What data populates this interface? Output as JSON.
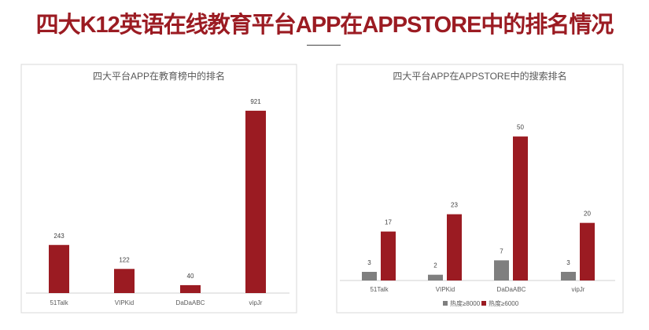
{
  "page_title": "四大K12英语在线教育平台APP在APPSTORE中的排名情况",
  "colors": {
    "title": "#9b1b22",
    "bar_red": "#9b1b22",
    "bar_gray": "#7f7f7f"
  },
  "chart_data": [
    {
      "type": "bar",
      "title": "四大平台APP在教育榜中的排名",
      "categories": [
        "51Talk",
        "VIPKid",
        "DaDaABC",
        "vipJr"
      ],
      "values": [
        243,
        122,
        40,
        921
      ],
      "ylim": [
        0,
        1000
      ],
      "grid": false,
      "legend": "none"
    },
    {
      "type": "bar",
      "title": "四大平台APP在APPSTORE中的搜索排名",
      "categories": [
        "51Talk",
        "VIPKid",
        "DaDaABC",
        "vipJr"
      ],
      "series": [
        {
          "name": "热度≥8000",
          "values": [
            3,
            2,
            7,
            3
          ],
          "color": "#7f7f7f"
        },
        {
          "name": "热度≥6000",
          "values": [
            17,
            23,
            50,
            20
          ],
          "color": "#9b1b22"
        }
      ],
      "ylim": [
        0,
        60
      ],
      "grid": false,
      "legend": "bottom"
    }
  ]
}
